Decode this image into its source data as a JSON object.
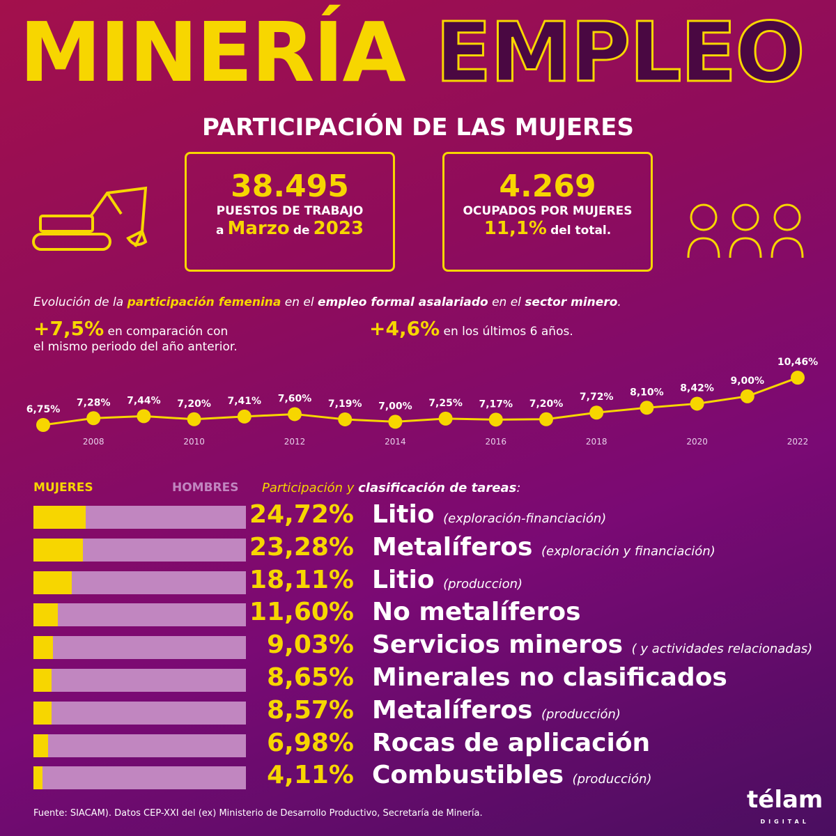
{
  "title": {
    "word1": "MINERÍA",
    "word2": "EMPLEO",
    "subtitle": "PARTICIPACIÓN DE LAS MUJERES"
  },
  "box1": {
    "number": "38.495",
    "line1": "PUESTOS DE TRABAJO",
    "pre": "a",
    "month": "Marzo",
    "de": "de",
    "year": "2023"
  },
  "box2": {
    "number": "4.269",
    "line1": "OCUPADOS POR MUJERES",
    "pct": "11,1%",
    "suffix": "del total."
  },
  "icons": {
    "left": "excavator-icon",
    "right": "women-icon"
  },
  "evolution": {
    "p1": "Evolución de la ",
    "b1": "participación femenina",
    "p2": " en el ",
    "b2": "empleo formal asalariado",
    "p3": " en el ",
    "b3": "sector minero",
    "p4": "."
  },
  "stat1": {
    "value": "+7,5%",
    "text1": " en comparación con",
    "text2": "el mismo periodo del año anterior."
  },
  "stat2": {
    "value": "+4,6%",
    "text": " en los últimos 6 años."
  },
  "colors": {
    "yellow": "#f7d600",
    "hombres": "#c186c0"
  },
  "chart_data": [
    {
      "type": "line",
      "x": [
        2007,
        2008,
        2009,
        2010,
        2011,
        2012,
        2013,
        2014,
        2015,
        2016,
        2017,
        2018,
        2019,
        2020,
        2021,
        2022
      ],
      "values": [
        6.75,
        7.28,
        7.44,
        7.2,
        7.41,
        7.6,
        7.19,
        7.0,
        7.25,
        7.17,
        7.2,
        7.72,
        8.1,
        8.42,
        9.0,
        10.46
      ],
      "labels": [
        "6,75%",
        "7,28%",
        "7,44%",
        "7,20%",
        "7,41%",
        "7,60%",
        "7,19%",
        "7,00%",
        "7,25%",
        "7,17%",
        "7,20%",
        "7,72%",
        "8,10%",
        "8,42%",
        "9,00%",
        "10,46%"
      ],
      "tick_labels": [
        "2008",
        "2010",
        "2012",
        "2014",
        "2016",
        "2018",
        "2020",
        "2022"
      ]
    },
    {
      "type": "bar",
      "title_a": "Participación y ",
      "title_b": "clasificación de tareas",
      "legend": [
        "MUJERES",
        "HOMBRES"
      ],
      "values": [
        24.72,
        23.28,
        18.11,
        11.6,
        9.03,
        8.65,
        8.57,
        6.98,
        4.11
      ],
      "labels": [
        "24,72%",
        "23,28%",
        "18,11%",
        "11,60%",
        "9,03%",
        "8,65%",
        "8,57%",
        "6,98%",
        "4,11%"
      ],
      "categories": [
        "Litio",
        "Metalíferos",
        "Litio",
        "No metalíferos",
        "Servicios mineros",
        "Minerales no clasificados",
        "Metalíferos",
        "Rocas de aplicación",
        "Combustibles"
      ],
      "notes": [
        "(exploración-financiación)",
        "(exploración y financiación)",
        "(produccion)",
        "",
        "( y actividades relacionadas)",
        "",
        "(producción)",
        "",
        "(producción)"
      ]
    }
  ],
  "source": "Fuente: SIACAM). Datos CEP-XXI del (ex) Ministerio de Desarrollo Productivo, Secretaría de Minería.",
  "logo": {
    "name": "télam",
    "sub": "DIGITAL"
  }
}
